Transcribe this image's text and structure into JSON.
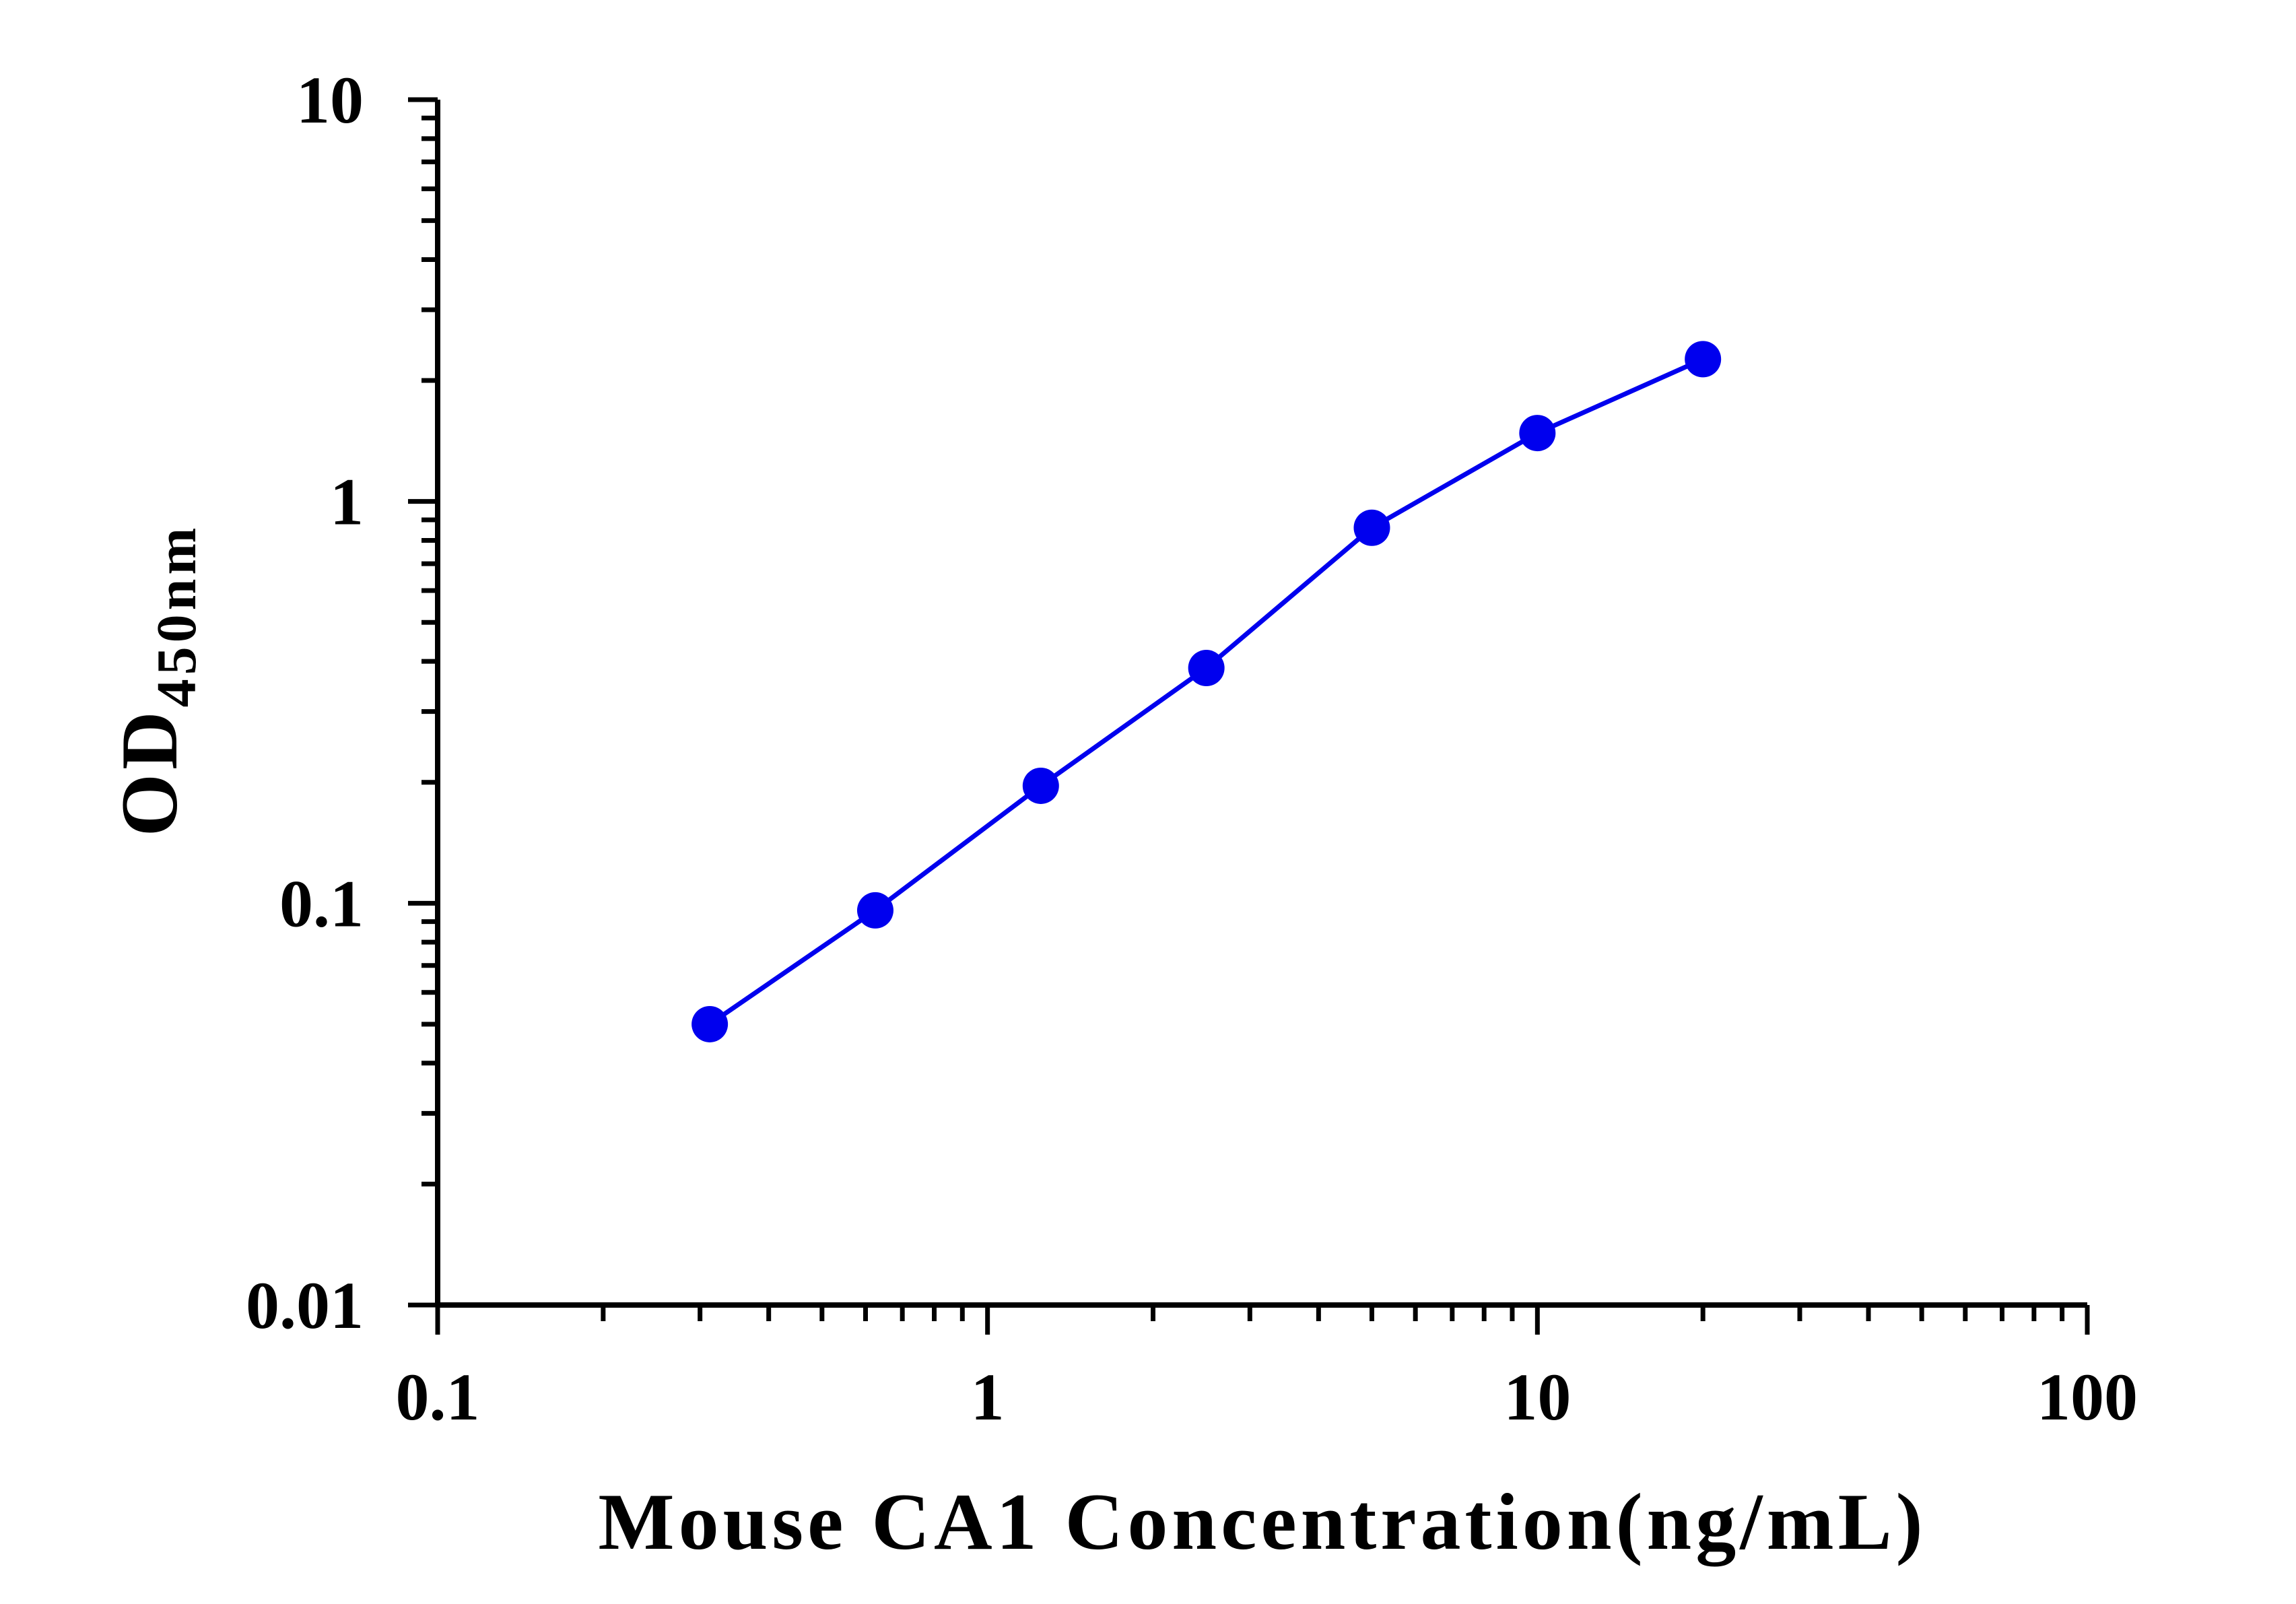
{
  "chart_data": {
    "type": "line",
    "xlabel": "Mouse CA1 Concentration(ng/mL)",
    "ylabel_main": "OD",
    "ylabel_sub": "450nm",
    "x_scale": "log",
    "y_scale": "log",
    "xlim": [
      0.1,
      100
    ],
    "ylim": [
      0.01,
      10
    ],
    "x_ticks": [
      {
        "value": 0.1,
        "label": "0.1"
      },
      {
        "value": 1,
        "label": "1"
      },
      {
        "value": 10,
        "label": "10"
      },
      {
        "value": 100,
        "label": "100"
      }
    ],
    "y_ticks": [
      {
        "value": 0.01,
        "label": "0.01"
      },
      {
        "value": 0.1,
        "label": "0.1"
      },
      {
        "value": 1,
        "label": "1"
      },
      {
        "value": 10,
        "label": "10"
      }
    ],
    "grid": false,
    "series": [
      {
        "color": "#0000ee",
        "x": [
          0.3125,
          0.625,
          1.25,
          2.5,
          5,
          10,
          20
        ],
        "y": [
          0.05,
          0.096,
          0.196,
          0.385,
          0.86,
          1.48,
          2.26
        ]
      }
    ]
  }
}
